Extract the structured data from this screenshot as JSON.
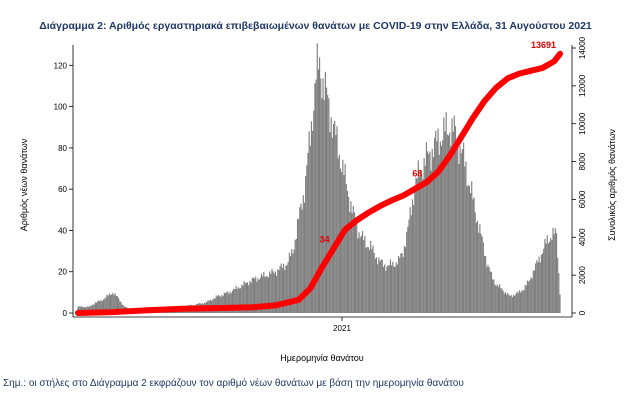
{
  "title": "Διάγραμμα 2: Αριθμός εργαστηριακά επιβεβαιωμένων θανάτων με COVID-19 στην Ελλάδα, 31 Αυγούστου 2021",
  "note": "Σημ.: οι στήλες στο Διάγραμμα 2 εκφράζουν τον αριθμό νέων θανάτων με βάση την ημερομηνία θανάτου",
  "chart_data": {
    "type": "bar",
    "xlabel": "Ημερομηνία θανάτου",
    "ylabel": "Αριθμός νέων θανάτων",
    "y2label": "Συνολικός αριθμός θανάτων",
    "ylim": [
      0,
      125
    ],
    "yticks": [
      0,
      20,
      40,
      60,
      80,
      100,
      120
    ],
    "y2lim": [
      0,
      14000
    ],
    "y2ticks": [
      0,
      2000,
      4000,
      6000,
      8000,
      10000,
      12000,
      14000
    ],
    "xtick_label": "2021",
    "grid": false,
    "series": [
      {
        "name": "Αριθμός νέων θανάτων",
        "type": "bar",
        "points": [
          [
            0,
            3
          ],
          [
            10,
            3
          ],
          [
            15,
            5
          ],
          [
            20,
            6
          ],
          [
            25,
            8
          ],
          [
            30,
            10
          ],
          [
            35,
            7
          ],
          [
            40,
            3
          ],
          [
            45,
            2
          ],
          [
            50,
            2
          ],
          [
            60,
            2
          ],
          [
            70,
            2
          ],
          [
            80,
            2
          ],
          [
            90,
            3
          ],
          [
            100,
            4
          ],
          [
            110,
            5
          ],
          [
            120,
            8
          ],
          [
            130,
            10
          ],
          [
            140,
            13
          ],
          [
            150,
            16
          ],
          [
            160,
            18
          ],
          [
            170,
            20
          ],
          [
            180,
            24
          ],
          [
            185,
            30
          ],
          [
            190,
            45
          ],
          [
            195,
            60
          ],
          [
            200,
            85
          ],
          [
            205,
            115
          ],
          [
            208,
            120
          ],
          [
            212,
            110
          ],
          [
            216,
            100
          ],
          [
            220,
            90
          ],
          [
            224,
            80
          ],
          [
            228,
            70
          ],
          [
            232,
            60
          ],
          [
            236,
            50
          ],
          [
            240,
            42
          ],
          [
            244,
            37
          ],
          [
            248,
            34
          ],
          [
            252,
            32
          ],
          [
            256,
            28
          ],
          [
            260,
            25
          ],
          [
            264,
            23
          ],
          [
            268,
            23
          ],
          [
            272,
            24
          ],
          [
            276,
            25
          ],
          [
            280,
            30
          ],
          [
            284,
            40
          ],
          [
            288,
            55
          ],
          [
            292,
            65
          ],
          [
            296,
            70
          ],
          [
            300,
            75
          ],
          [
            304,
            78
          ],
          [
            308,
            82
          ],
          [
            312,
            85
          ],
          [
            316,
            88
          ],
          [
            320,
            90
          ],
          [
            324,
            88
          ],
          [
            328,
            82
          ],
          [
            332,
            75
          ],
          [
            336,
            65
          ],
          [
            340,
            55
          ],
          [
            344,
            45
          ],
          [
            348,
            35
          ],
          [
            352,
            25
          ],
          [
            356,
            18
          ],
          [
            360,
            14
          ],
          [
            364,
            12
          ],
          [
            368,
            10
          ],
          [
            372,
            8
          ],
          [
            376,
            9
          ],
          [
            380,
            10
          ],
          [
            384,
            12
          ],
          [
            388,
            15
          ],
          [
            392,
            20
          ],
          [
            396,
            25
          ],
          [
            400,
            30
          ],
          [
            404,
            35
          ],
          [
            408,
            38
          ],
          [
            412,
            38
          ],
          [
            415,
            10
          ]
        ]
      },
      {
        "name": "Συνολικός αριθμός θανάτων",
        "type": "line",
        "points": [
          [
            0,
            0
          ],
          [
            30,
            50
          ],
          [
            60,
            150
          ],
          [
            90,
            220
          ],
          [
            120,
            260
          ],
          [
            150,
            300
          ],
          [
            170,
            400
          ],
          [
            190,
            700
          ],
          [
            200,
            1300
          ],
          [
            210,
            2400
          ],
          [
            220,
            3400
          ],
          [
            230,
            4400
          ],
          [
            240,
            4900
          ],
          [
            250,
            5300
          ],
          [
            260,
            5650
          ],
          [
            270,
            5950
          ],
          [
            280,
            6200
          ],
          [
            290,
            6550
          ],
          [
            300,
            6900
          ],
          [
            310,
            7450
          ],
          [
            320,
            8300
          ],
          [
            330,
            9300
          ],
          [
            340,
            10300
          ],
          [
            350,
            11200
          ],
          [
            360,
            11900
          ],
          [
            370,
            12400
          ],
          [
            380,
            12650
          ],
          [
            390,
            12800
          ],
          [
            400,
            12950
          ],
          [
            410,
            13300
          ],
          [
            415,
            13691
          ]
        ]
      }
    ],
    "annotations": [
      {
        "text": "13691",
        "x": 415,
        "y2": 13691
      },
      {
        "text": "68",
        "x": 300,
        "y2": 6900
      },
      {
        "text": "34",
        "x": 220,
        "y2": 3400
      }
    ]
  }
}
